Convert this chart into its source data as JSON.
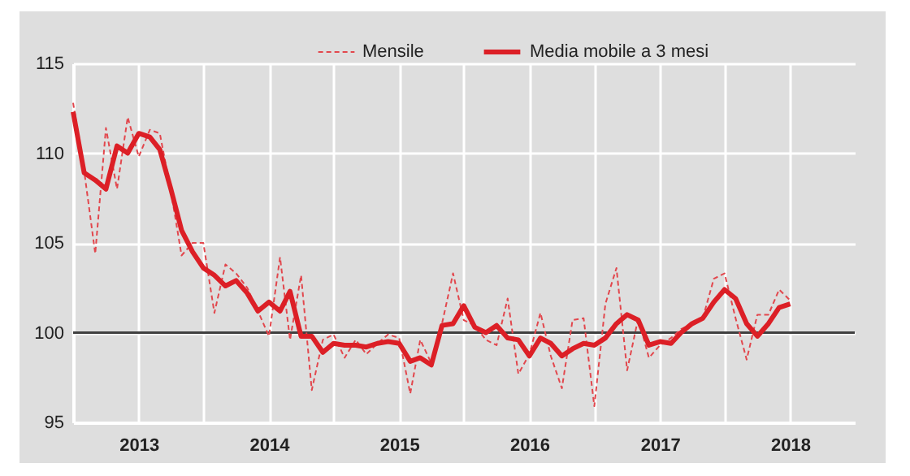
{
  "chart_data": {
    "type": "line",
    "x": [
      "2012-07",
      "2012-08",
      "2012-09",
      "2012-10",
      "2012-11",
      "2012-12",
      "2013-01",
      "2013-02",
      "2013-03",
      "2013-04",
      "2013-05",
      "2013-06",
      "2013-07",
      "2013-08",
      "2013-09",
      "2013-10",
      "2013-11",
      "2013-12",
      "2014-01",
      "2014-02",
      "2014-03",
      "2014-04",
      "2014-05",
      "2014-06",
      "2014-07",
      "2014-08",
      "2014-09",
      "2014-10",
      "2014-11",
      "2014-12",
      "2015-01",
      "2015-02",
      "2015-03",
      "2015-04",
      "2015-05",
      "2015-06",
      "2015-07",
      "2015-08",
      "2015-09",
      "2015-10",
      "2015-11",
      "2015-12",
      "2016-01",
      "2016-02",
      "2016-03",
      "2016-04",
      "2016-05",
      "2016-06",
      "2016-07",
      "2016-08",
      "2016-09",
      "2016-10",
      "2016-11",
      "2016-12",
      "2017-01",
      "2017-02",
      "2017-03",
      "2017-04",
      "2017-05",
      "2017-06",
      "2017-07",
      "2017-08",
      "2017-09",
      "2017-10",
      "2017-11",
      "2017-12",
      "2018-01"
    ],
    "series": [
      {
        "name": "Mensile",
        "color": "#e2474d",
        "line_style": "dashed",
        "values": [
          112.8,
          109.0,
          104.4,
          111.4,
          108.0,
          112.0,
          109.8,
          111.3,
          111.1,
          107.9,
          104.3,
          105.0,
          105.0,
          101.1,
          103.8,
          103.3,
          102.5,
          101.2,
          99.8,
          104.2,
          99.6,
          103.2,
          96.8,
          99.6,
          99.9,
          98.6,
          99.6,
          98.8,
          99.4,
          99.9,
          99.7,
          96.6,
          99.6,
          98.3,
          100.5,
          103.3,
          100.7,
          100.4,
          99.6,
          99.3,
          101.9,
          97.7,
          98.8,
          101.1,
          98.7,
          96.9,
          100.7,
          100.8,
          95.9,
          101.6,
          103.6,
          97.9,
          100.8,
          98.6,
          99.3,
          99.7,
          100.2,
          100.5,
          100.8,
          103.0,
          103.3,
          100.8,
          98.5,
          101.0,
          101.0,
          102.4,
          101.8
        ]
      },
      {
        "name": "Media mobile a 3 mesi",
        "color": "#dc1f26",
        "line_style": "solid",
        "values": [
          112.3,
          108.9,
          108.5,
          108.0,
          110.4,
          110.0,
          111.1,
          110.9,
          110.2,
          108.0,
          105.7,
          104.5,
          103.6,
          103.2,
          102.6,
          102.9,
          102.2,
          101.2,
          101.7,
          101.2,
          102.3,
          99.8,
          99.8,
          98.9,
          99.4,
          99.3,
          99.3,
          99.2,
          99.4,
          99.5,
          99.4,
          98.4,
          98.6,
          98.2,
          100.4,
          100.5,
          101.5,
          100.3,
          100.0,
          100.4,
          99.7,
          99.6,
          98.7,
          99.7,
          99.4,
          98.7,
          99.1,
          99.4,
          99.3,
          99.7,
          100.5,
          101.0,
          100.7,
          99.3,
          99.5,
          99.4,
          100.0,
          100.5,
          100.8,
          101.7,
          102.4,
          101.9,
          100.5,
          99.8,
          100.5,
          101.4,
          101.6
        ]
      }
    ],
    "xlim": [
      "2012-07",
      "2018-07"
    ],
    "xticks": [
      {
        "value": "2013-01",
        "label": "2013"
      },
      {
        "value": "2013-07",
        "label": null
      },
      {
        "value": "2014-01",
        "label": "2014"
      },
      {
        "value": "2014-07",
        "label": null
      },
      {
        "value": "2015-01",
        "label": "2015"
      },
      {
        "value": "2015-07",
        "label": null
      },
      {
        "value": "2016-01",
        "label": "2016"
      },
      {
        "value": "2016-07",
        "label": null
      },
      {
        "value": "2017-01",
        "label": "2017"
      },
      {
        "value": "2017-07",
        "label": null
      },
      {
        "value": "2018-01",
        "label": "2018"
      }
    ],
    "ylim": [
      95,
      115
    ],
    "yticks": [
      95,
      100,
      105,
      110,
      115
    ],
    "ref_lines": [
      {
        "axis": "y",
        "value": 100,
        "color": "#404040"
      }
    ],
    "grid": true,
    "legend": "top"
  }
}
